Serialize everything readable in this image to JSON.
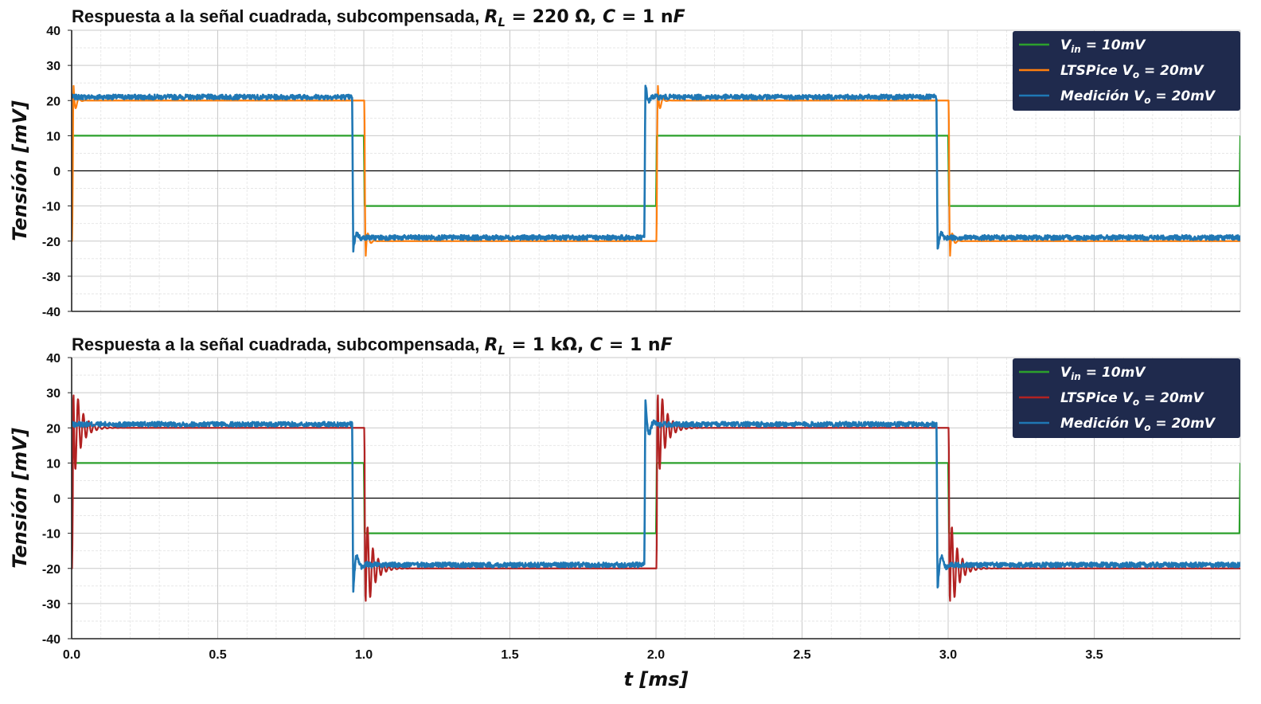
{
  "chart_data": [
    {
      "type": "line",
      "title": "Respuesta a la señal cuadrada, subcompensada, R_L = 220 Ω, C = 1 nF",
      "title_parts": {
        "prefix": "Respuesta a la señal cuadrada, subcompensada, ",
        "rl_value": "220",
        "rl_unit": "Ω",
        "c_value": "1",
        "c_unit": "nF"
      },
      "xlabel": "",
      "ylabel": "Tensión [mV]",
      "xlim": [
        0,
        4
      ],
      "ylim": [
        -40,
        40
      ],
      "yticks": [
        40,
        30,
        20,
        10,
        0,
        -10,
        -20,
        -30,
        -40
      ],
      "grid": true,
      "legend_position": "top-right",
      "legend": [
        "V_in = 10mV",
        "LTSPice V_o = 20mV",
        "Medición V_o = 20mV"
      ],
      "series": [
        {
          "name": "V_in = 10mV",
          "color": "#2ca02c",
          "x": [
            0.0,
            0.003,
            1.0,
            1.003,
            2.0,
            2.003,
            3.0,
            3.003,
            3.997,
            4.0
          ],
          "y": [
            -10,
            10,
            10,
            -10,
            -10,
            10,
            10,
            -10,
            -10,
            10
          ]
        },
        {
          "name": "LTSPice V_o = 20mV",
          "color": "#ff7f0e",
          "response": {
            "edge_times": [
              0.0,
              1.0,
              2.0,
              3.0
            ],
            "low": -20,
            "high": 20,
            "overshoot": 8,
            "ring_freq_khz": 45,
            "ring_decay_ms": 0.008,
            "delay_ms": 0.002
          }
        },
        {
          "name": "Medición V_o = 20mV",
          "color": "#1f77b4",
          "response": {
            "edge_times": [
              -0.04,
              0.96,
              1.96,
              2.96
            ],
            "low": -19,
            "high": 21,
            "overshoot": 5,
            "ring_freq_khz": 30,
            "ring_decay_ms": 0.01,
            "noise_mv": 0.7
          }
        }
      ]
    },
    {
      "type": "line",
      "title": "Respuesta a la señal cuadrada, subcompensada, R_L = 1 kΩ, C = 1 nF",
      "title_parts": {
        "prefix": "Respuesta a la señal cuadrada, subcompensada, ",
        "rl_value": "1",
        "rl_unit": "kΩ",
        "c_value": "1",
        "c_unit": "nF"
      },
      "xlabel": "t [ms]",
      "ylabel": "Tensión [mV]",
      "xlim": [
        0,
        4
      ],
      "ylim": [
        -40,
        40
      ],
      "xticks": [
        "0.0",
        "0.5",
        "1.0",
        "1.5",
        "2.0",
        "2.5",
        "3.0",
        "3.5"
      ],
      "yticks": [
        40,
        30,
        20,
        10,
        0,
        -10,
        -20,
        -30,
        -40
      ],
      "grid": true,
      "legend_position": "top-right",
      "legend": [
        "V_in = 10mV",
        "LTSPice V_o = 20mV",
        "Medición V_o = 20mV"
      ],
      "series": [
        {
          "name": "V_in = 10mV",
          "color": "#2ca02c",
          "x": [
            0.0,
            0.003,
            1.0,
            1.003,
            2.0,
            2.003,
            3.0,
            3.003,
            3.997,
            4.0
          ],
          "y": [
            -10,
            10,
            10,
            -10,
            -10,
            10,
            10,
            -10,
            -10,
            10
          ]
        },
        {
          "name": "LTSPice V_o = 20mV",
          "color": "#b22222",
          "response": {
            "edge_times": [
              0.0,
              1.0,
              2.0,
              3.0
            ],
            "low": -20,
            "high": 20,
            "overshoot": 17,
            "ring_freq_khz": 55,
            "ring_decay_ms": 0.025,
            "delay_ms": 0.002
          }
        },
        {
          "name": "Medición V_o = 20mV",
          "color": "#1f77b4",
          "response": {
            "edge_times": [
              -0.04,
              0.96,
              1.96,
              2.96
            ],
            "low": -19,
            "high": 21,
            "overshoot": 9,
            "ring_freq_khz": 30,
            "ring_decay_ms": 0.012,
            "noise_mv": 0.7
          }
        }
      ]
    }
  ],
  "colors": {
    "legend_background": "#1f2a4d",
    "zero_line": "#000000"
  }
}
